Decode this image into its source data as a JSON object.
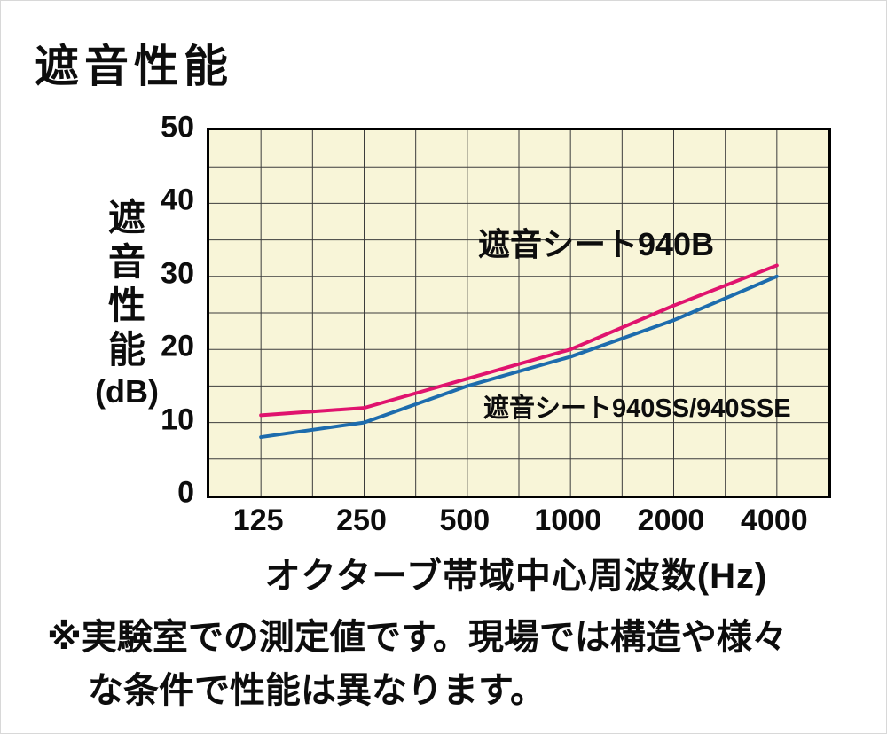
{
  "page": {
    "title": "遮音性能"
  },
  "chart": {
    "y_axis_label": "遮\n音\n性\n能",
    "y_axis_unit": "(dB)",
    "x_axis_label": "オクターブ帯域中心周波数(Hz)",
    "annotations": {
      "series_b": "遮音シート940B",
      "series_ss": "遮音シート940SS/940SSE"
    },
    "colors": {
      "series_b": "#e0136e",
      "series_ss": "#1d6cad",
      "plot_background": "#f8f5d8",
      "grid": "#3c3c3c",
      "axis": "#000000"
    }
  },
  "footnote": {
    "line1": "※実験室での測定値です。現場では構造や様々",
    "line2": "な条件で性能は異なります。"
  },
  "chart_data": {
    "type": "line",
    "title": "遮音性能",
    "categories": [
      "125",
      "250",
      "500",
      "1000",
      "2000",
      "4000"
    ],
    "x_scale": "log-octave",
    "xlabel": "オクターブ帯域中心周波数(Hz)",
    "ylabel": "遮音性能(dB)",
    "ylim": [
      0,
      50
    ],
    "y_ticks": [
      0,
      10,
      20,
      30,
      40,
      50
    ],
    "y_grid_step": 5,
    "grid": true,
    "legend_position": "inline-annotations",
    "series": [
      {
        "name": "遮音シート940B",
        "color": "#e0136e",
        "values": [
          11,
          12,
          16,
          20,
          26,
          31.5
        ]
      },
      {
        "name": "遮音シート940SS/940SSE",
        "color": "#1d6cad",
        "values": [
          8,
          10,
          15,
          19,
          24,
          30
        ]
      }
    ]
  }
}
